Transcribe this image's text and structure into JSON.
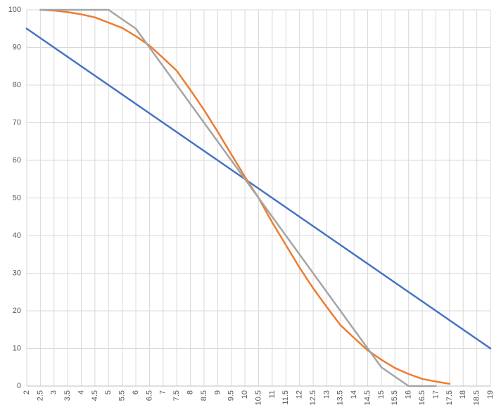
{
  "chart_data": {
    "type": "line",
    "categories": [
      "2",
      "2.5",
      "3",
      "3.5",
      "4",
      "4.5",
      "5",
      "5.5",
      "6",
      "6.5",
      "7",
      "7.5",
      "8",
      "8.5",
      "9",
      "9.5",
      "10",
      "10.5",
      "11",
      "11.5",
      "12",
      "12.5",
      "13",
      "13.5",
      "14",
      "14.5",
      "15",
      "15.5",
      "16",
      "16.5",
      "17",
      "17.5",
      "18",
      "18.5",
      "19"
    ],
    "series": [
      {
        "color": "#4472c4",
        "values": [
          95,
          92.5,
          90,
          87.5,
          85,
          82.5,
          80,
          77.5,
          75,
          72.5,
          70,
          67.5,
          65,
          62.5,
          60,
          57.5,
          55,
          52.5,
          50,
          47.5,
          45,
          42.5,
          40,
          37.5,
          35,
          32.5,
          30,
          27.5,
          25,
          22.5,
          20,
          17.5,
          15,
          12.5,
          10
        ]
      },
      {
        "color": "#ed7d31",
        "values": [
          null,
          100,
          99.8,
          99.4,
          98.8,
          98,
          96.6,
          95.2,
          93,
          90.5,
          87.2,
          83.8,
          78.7,
          73.4,
          67.6,
          61.6,
          55.6,
          50,
          43.5,
          37.5,
          31.5,
          26,
          21,
          16.2,
          12.8,
          9.5,
          7,
          4.8,
          3.2,
          1.9,
          1.2,
          0.6,
          null,
          null,
          null
        ]
      },
      {
        "color": "#a5a5a5",
        "values": [
          null,
          100,
          100,
          100,
          100,
          100,
          100,
          97.5,
          95,
          90,
          85,
          80,
          75,
          70,
          65,
          60,
          55,
          50,
          45,
          40,
          35,
          30,
          25,
          20,
          15,
          10,
          5,
          2.5,
          0,
          0,
          0,
          null,
          null,
          null,
          null
        ]
      }
    ],
    "ylim": [
      0,
      100
    ],
    "yticks": [
      0,
      10,
      20,
      30,
      40,
      50,
      60,
      70,
      80,
      90,
      100
    ],
    "grid": true
  }
}
